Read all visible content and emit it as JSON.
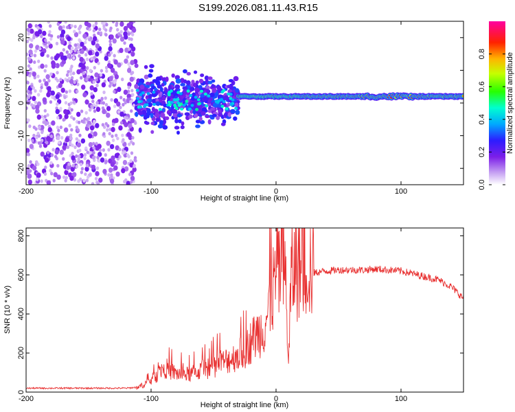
{
  "chart_data": [
    {
      "type": "heatmap",
      "title": "S199.2026.081.11.43.R15",
      "xlabel": "Height of straight line (km)",
      "ylabel": "Frequency (Hz)",
      "xlim": [
        -200,
        150
      ],
      "ylim": [
        -25,
        25
      ],
      "x_ticks": [
        -200,
        -100,
        0,
        100
      ],
      "y_ticks": [
        -20,
        -10,
        0,
        10,
        20
      ],
      "grid": false,
      "colorbar": {
        "label": "Normalized spectral amplitude",
        "range": [
          0,
          1
        ],
        "ticks": [
          "0.0",
          "0.2",
          "0.4",
          "0.6",
          "0.8"
        ],
        "colormap": "rainbow (white-violet-blue-cyan-green-yellow-orange-red-magenta)"
      },
      "features": [
        {
          "x_range": [
            -200,
            -112
          ],
          "freq_range": [
            -25,
            25
          ],
          "amplitude": "low, diffuse noise"
        },
        {
          "x_range": [
            -112,
            -30
          ],
          "freq_range": [
            -10,
            10
          ],
          "amplitude": "low to moderate, speckled"
        },
        {
          "x_range": [
            -30,
            150
          ],
          "freq_center": 2,
          "amplitude": "high, narrow carrier line"
        }
      ]
    },
    {
      "type": "line",
      "xlabel": "Height of straight line (km)",
      "ylabel": "SNR (10 * v/v)",
      "xlim": [
        -200,
        150
      ],
      "ylim": [
        0,
        840
      ],
      "x_ticks": [
        -200,
        -100,
        0,
        100
      ],
      "y_ticks": [
        0,
        200,
        400,
        600,
        800
      ],
      "grid": false,
      "series": [
        {
          "name": "SNR",
          "color": "#e83030",
          "x": [
            -200,
            -180,
            -160,
            -140,
            -120,
            -110,
            -100,
            -95,
            -90,
            -85,
            -80,
            -70,
            -60,
            -50,
            -40,
            -30,
            -25,
            -20,
            -15,
            -10,
            -5,
            0,
            5,
            8,
            10,
            12,
            15,
            20,
            25,
            30,
            40,
            50,
            60,
            70,
            80,
            90,
            100,
            110,
            120,
            130,
            140,
            150
          ],
          "y": [
            20,
            20,
            20,
            20,
            20,
            25,
            60,
            90,
            130,
            110,
            95,
            90,
            110,
            130,
            160,
            190,
            210,
            260,
            300,
            330,
            440,
            600,
            640,
            560,
            120,
            580,
            640,
            650,
            670,
            610,
            620,
            625,
            625,
            625,
            630,
            625,
            620,
            605,
            590,
            575,
            540,
            480
          ]
        }
      ]
    }
  ]
}
